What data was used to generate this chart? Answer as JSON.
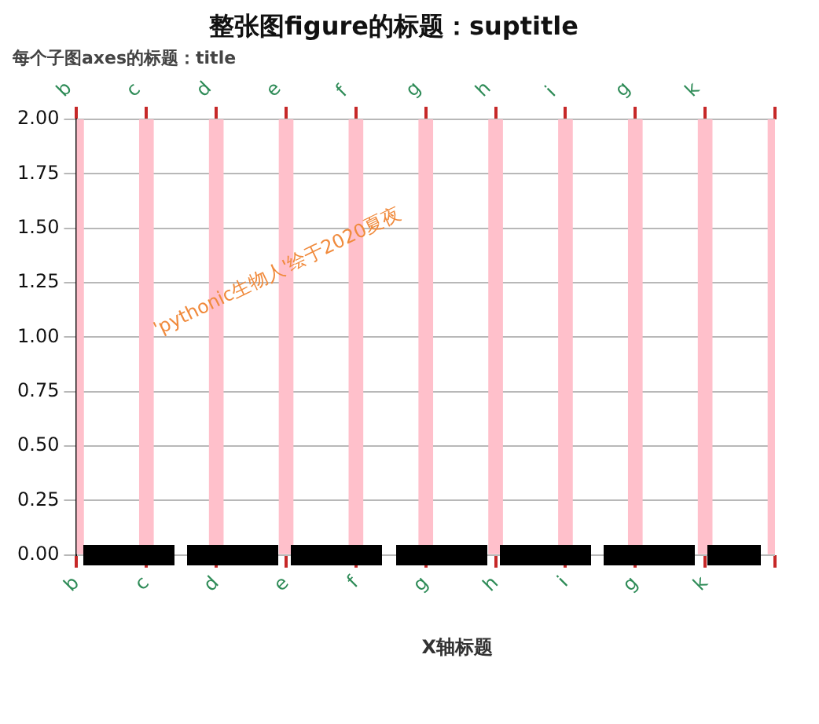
{
  "chart_data": {
    "type": "bar",
    "title": "整张图figure的标题：suptitle",
    "subtitle": "每个子图axes的标题：title",
    "xlabel": "X轴标题",
    "categories": [
      "b",
      "c",
      "d",
      "e",
      "f",
      "g",
      "h",
      "i",
      "g",
      "k",
      null
    ],
    "values": [
      2,
      2,
      2,
      2,
      2,
      2,
      2,
      2,
      2,
      2,
      2
    ],
    "color": "#ffc0cb",
    "ylim": [
      0,
      2
    ],
    "yticks": [
      {
        "value": 0,
        "label": "0.00"
      },
      {
        "value": 0.25,
        "label": "0.25"
      },
      {
        "value": 0.5,
        "label": "0.50"
      },
      {
        "value": 0.75,
        "label": "0.75"
      },
      {
        "value": 1,
        "label": "1.00"
      },
      {
        "value": 1.25,
        "label": "1.25"
      },
      {
        "value": 1.5,
        "label": "1.50"
      },
      {
        "value": 1.75,
        "label": "1.75"
      },
      {
        "value": 2,
        "label": "2.00"
      }
    ],
    "grid": "y",
    "annotations": [
      "'pythonic生物人'绘于2020夏夜"
    ]
  }
}
